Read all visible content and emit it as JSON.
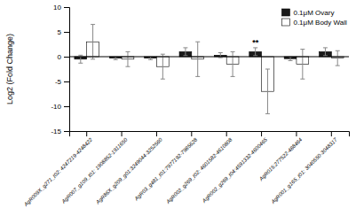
{
  "chart_data": {
    "type": "bar",
    "categories": [
      "AgR009X_g271_t02: 4247219-4248422",
      "AgR007_g109_t01: 1908852-1911650",
      "AgR86X_g209_g01:3249044-3252560",
      "AgR03_g481_t01:7977192-7985628",
      "AgR002_g269_t02: 4601582-4610808",
      "AgR002_g269_t04:4591332-4600465",
      "AgR015:277522-488464",
      "AgR001_g165_t01: 3040550-3048317"
    ],
    "series": [
      {
        "name": "0.1μM Ovary",
        "color": "#1a1a1a",
        "values": [
          -0.5,
          -0.3,
          -0.3,
          1.0,
          0.3,
          1.0,
          -0.4,
          1.0
        ],
        "errors": [
          0.8,
          0.3,
          0.3,
          0.8,
          0.5,
          0.8,
          0.4,
          0.8
        ]
      },
      {
        "name": "0.1μM Body Wall",
        "color": "#ffffff",
        "values": [
          3.0,
          -0.5,
          -2.0,
          -0.5,
          -1.5,
          -7.0,
          -1.5,
          -0.3
        ],
        "errors": [
          3.5,
          1.5,
          2.5,
          3.5,
          2.5,
          4.5,
          3.0,
          1.5
        ]
      }
    ],
    "ylabel": "Log2 (Fold Change)",
    "ylim": [
      -15,
      10
    ],
    "yticks": [
      -15,
      -10,
      -5,
      0,
      5,
      10
    ],
    "grid": false,
    "legend": "upper right",
    "annotations": [
      {
        "text": "**",
        "category": "AgR002_g269_t04:4591332-4600465",
        "series": "0.1μM Ovary"
      }
    ]
  }
}
